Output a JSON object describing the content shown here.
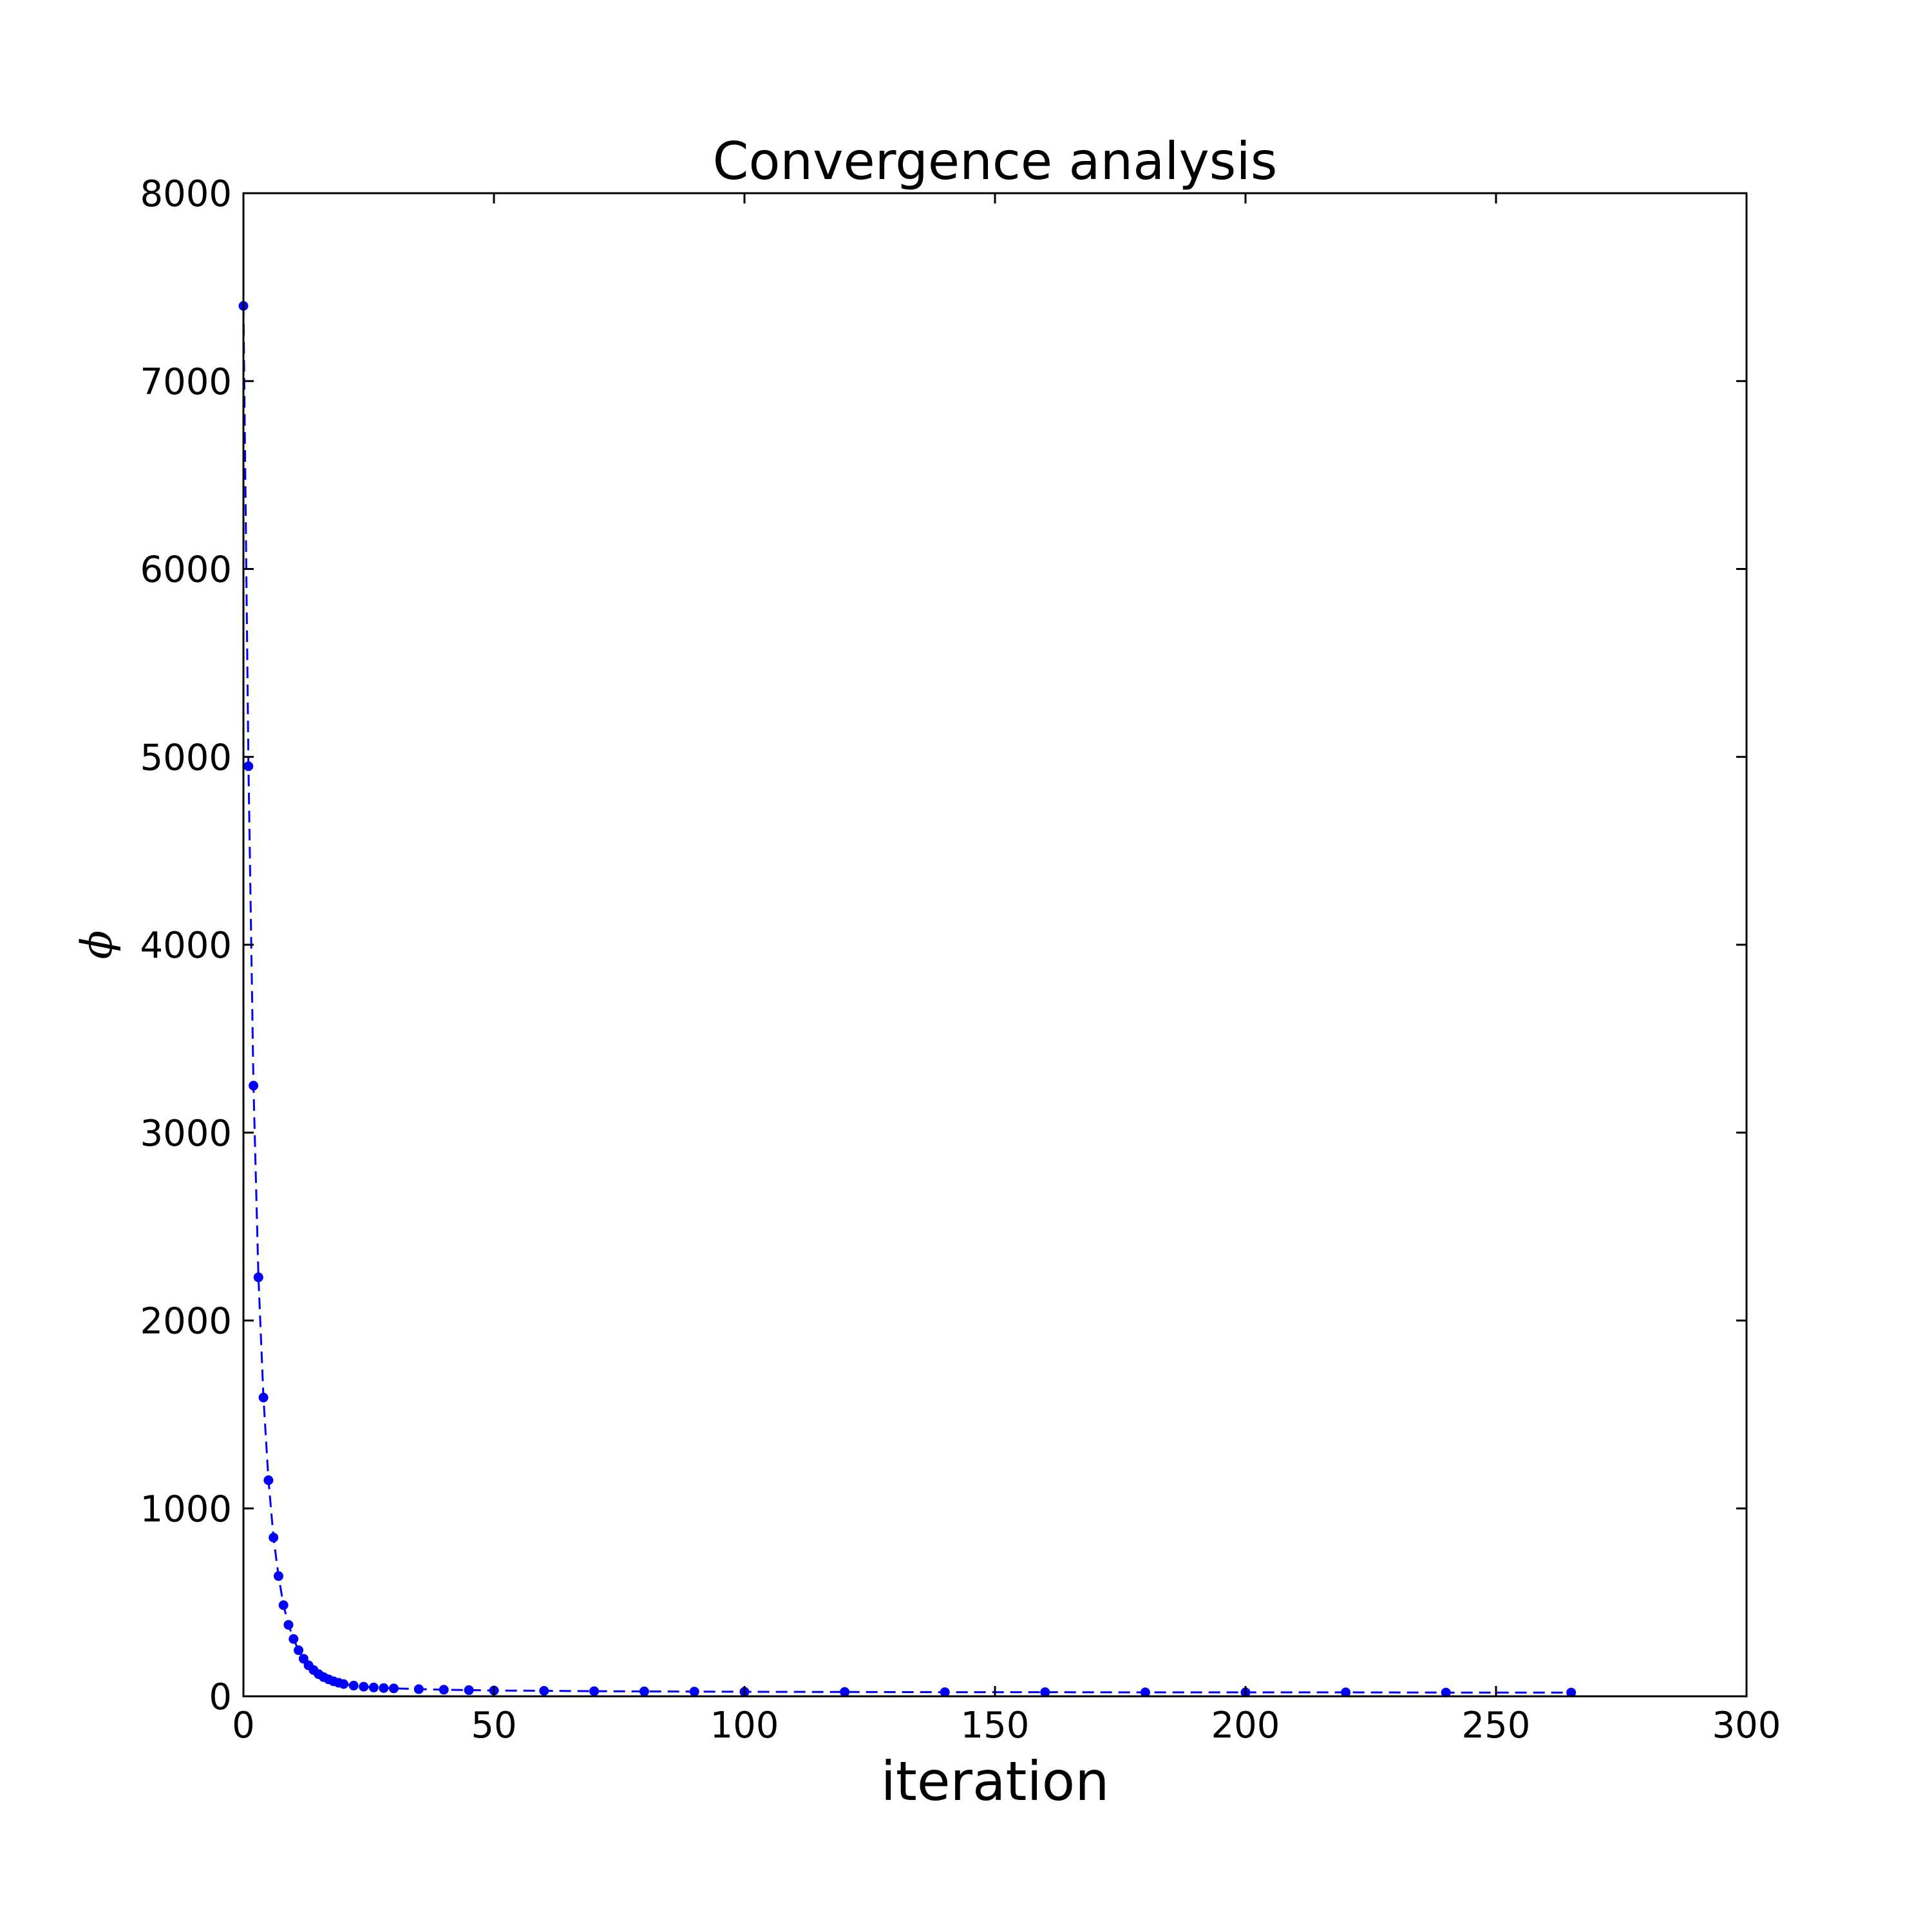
{
  "chart_data": {
    "type": "line",
    "title": "Convergence analysis",
    "xlabel": "iteration",
    "ylabel": "ϕ",
    "xlim": [
      0,
      300
    ],
    "ylim": [
      0,
      8000
    ],
    "xticks": [
      0,
      50,
      100,
      150,
      200,
      250,
      300
    ],
    "yticks": [
      0,
      1000,
      2000,
      3000,
      4000,
      5000,
      6000,
      7000,
      8000
    ],
    "grid": false,
    "line_style": "dashed",
    "marker": "dot",
    "color": "#0000ff",
    "series": [
      {
        "x": [
          0,
          1,
          2,
          3,
          4,
          5,
          6,
          7,
          8,
          9,
          10,
          11,
          12,
          13,
          14,
          15,
          16,
          17,
          18,
          19,
          20,
          22,
          24,
          26,
          28,
          30,
          35,
          40,
          45,
          50,
          60,
          70,
          80,
          90,
          100,
          120,
          140,
          160,
          180,
          200,
          220,
          240,
          265
        ],
        "y": [
          7400,
          4950,
          3250,
          2230,
          1590,
          1150,
          845,
          640,
          485,
          380,
          305,
          245,
          200,
          165,
          140,
          118,
          102,
          90,
          80,
          72,
          65,
          57,
          51,
          47,
          44,
          42,
          38,
          35,
          33,
          31,
          29,
          27,
          26,
          25,
          24,
          23,
          22,
          22,
          21,
          21,
          21,
          20,
          20
        ]
      }
    ]
  }
}
